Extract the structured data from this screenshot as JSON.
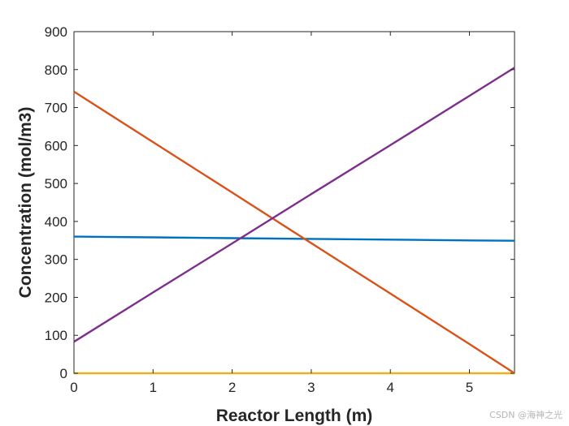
{
  "chart_data": {
    "type": "line",
    "xlabel": "Reactor Length (m)",
    "ylabel": "Concentration (mol/m3)",
    "xlim": [
      0,
      5.57
    ],
    "ylim": [
      0,
      900
    ],
    "xticks": [
      0,
      1,
      2,
      3,
      4,
      5
    ],
    "yticks": [
      0,
      100,
      200,
      300,
      400,
      500,
      600,
      700,
      800,
      900
    ],
    "grid": false,
    "series": [
      {
        "color": "#0072BD",
        "x": [
          0,
          1,
          2,
          3,
          4,
          5,
          5.57
        ],
        "y": [
          360,
          358,
          356,
          354,
          352,
          350,
          349
        ]
      },
      {
        "color": "#D95319",
        "x": [
          0,
          1,
          2,
          3,
          4,
          5,
          5.57
        ],
        "y": [
          742,
          609,
          476,
          343,
          210,
          77,
          0
        ]
      },
      {
        "color": "#EDB120",
        "x": [
          0,
          5.57
        ],
        "y": [
          0,
          0
        ]
      },
      {
        "color": "#7E2F8E",
        "x": [
          0,
          1,
          2,
          3,
          4,
          5,
          5.57
        ],
        "y": [
          83,
          213,
          342,
          472,
          601,
          731,
          805
        ]
      }
    ]
  },
  "watermark": "CSDN @海神之光"
}
